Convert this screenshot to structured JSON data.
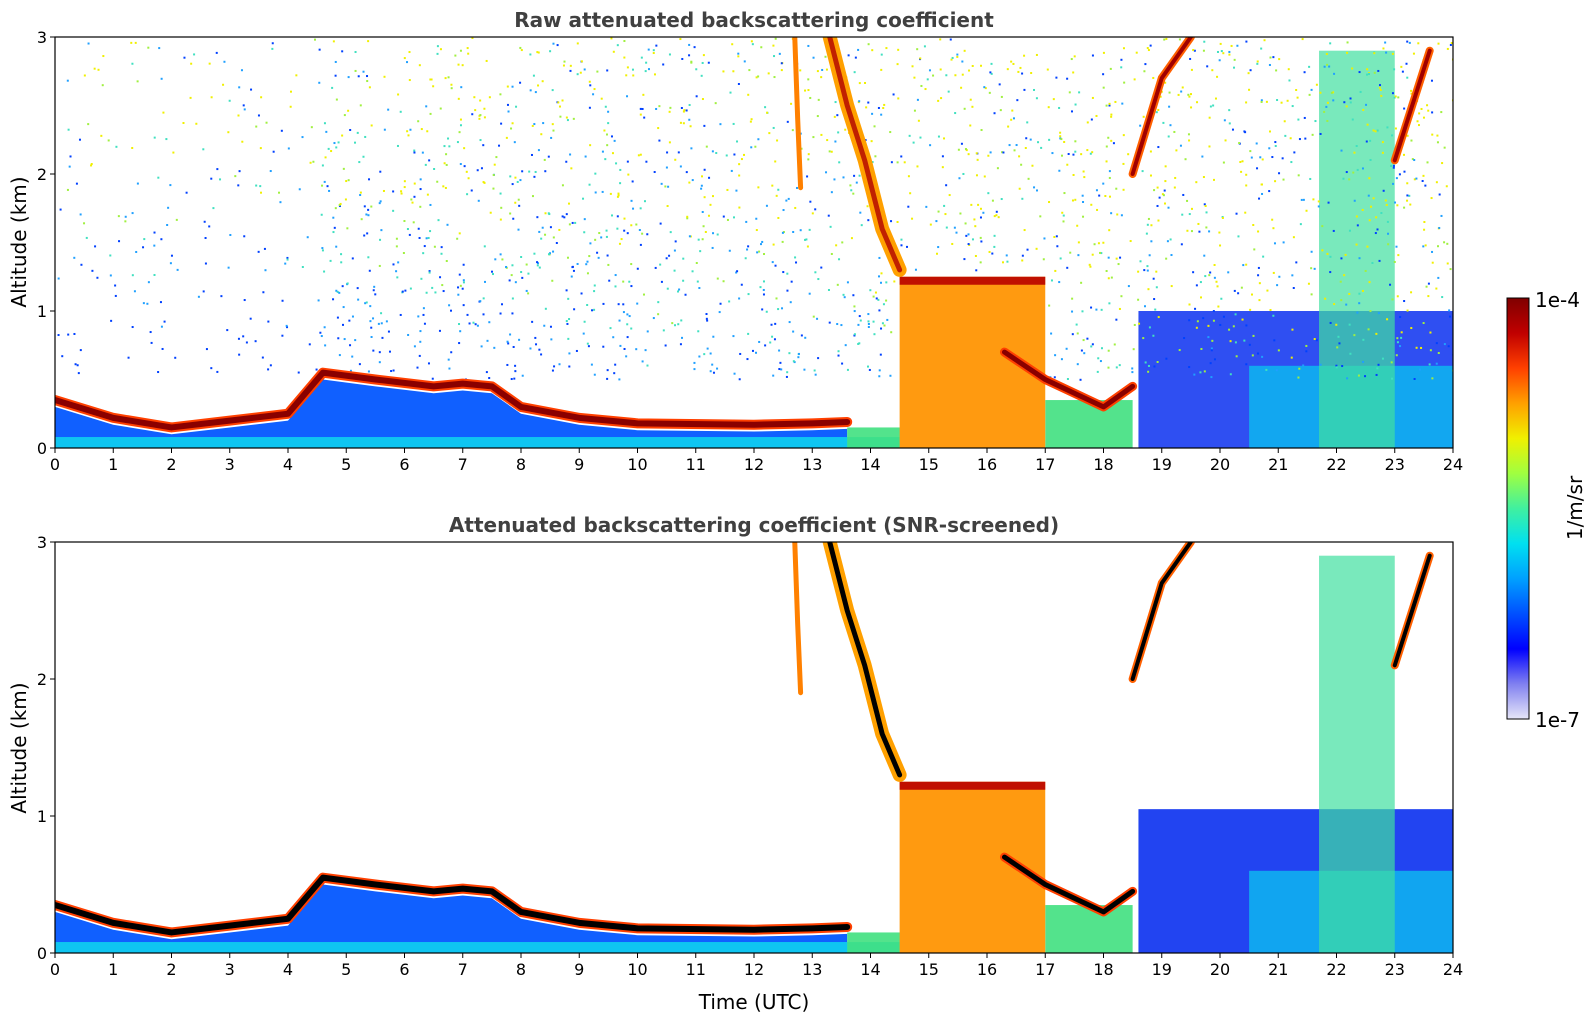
{
  "chart_data": [
    {
      "type": "heatmap",
      "title": "Raw attenuated backscattering coefficient",
      "xlabel": "",
      "ylabel": "Altitude (km)",
      "xlim": [
        0,
        24
      ],
      "ylim": [
        0,
        3
      ],
      "xticks": [
        "0",
        "1",
        "2",
        "3",
        "4",
        "5",
        "6",
        "7",
        "8",
        "9",
        "10",
        "11",
        "12",
        "13",
        "14",
        "15",
        "16",
        "17",
        "18",
        "19",
        "20",
        "21",
        "22",
        "23",
        "24"
      ],
      "yticks": [
        "0",
        "1",
        "2",
        "3"
      ],
      "features": [
        {
          "name": "boundary-layer-top",
          "kind": "line",
          "x": [
            0,
            1,
            2,
            3,
            4,
            4.6,
            5.5,
            6.5,
            7,
            7.5,
            8,
            9,
            10,
            12,
            13,
            13.6
          ],
          "y": [
            0.35,
            0.22,
            0.15,
            0.2,
            0.25,
            0.55,
            0.5,
            0.45,
            0.47,
            0.45,
            0.3,
            0.22,
            0.18,
            0.17,
            0.18,
            0.19
          ]
        },
        {
          "name": "cloud-descending",
          "kind": "line",
          "x": [
            13.3,
            13.6,
            13.9,
            14.2,
            14.5
          ],
          "y": [
            3.0,
            2.5,
            2.1,
            1.6,
            1.3
          ]
        },
        {
          "name": "thick-cloud-block",
          "kind": "block",
          "x": [
            14.5,
            17.0
          ],
          "y": [
            0.0,
            1.2
          ]
        },
        {
          "name": "cloud-base-descending",
          "kind": "line",
          "x": [
            16.3,
            17,
            17.5,
            18,
            18.5
          ],
          "y": [
            0.7,
            0.5,
            0.4,
            0.3,
            0.45
          ]
        },
        {
          "name": "high-cloud-streaks",
          "kind": "line",
          "x": [
            18.5,
            19,
            19.5
          ],
          "y": [
            2.0,
            2.7,
            3.0
          ]
        },
        {
          "name": "high-cloud-right",
          "kind": "line",
          "x": [
            23.0,
            23.3,
            23.6
          ],
          "y": [
            2.1,
            2.5,
            2.9
          ]
        }
      ]
    },
    {
      "type": "heatmap",
      "title": "Attenuated backscattering coefficient (SNR-screened)",
      "xlabel": "Time (UTC)",
      "ylabel": "Altitude (km)",
      "xlim": [
        0,
        24
      ],
      "ylim": [
        0,
        3
      ],
      "xticks": [
        "0",
        "1",
        "2",
        "3",
        "4",
        "5",
        "6",
        "7",
        "8",
        "9",
        "10",
        "11",
        "12",
        "13",
        "14",
        "15",
        "16",
        "17",
        "18",
        "19",
        "20",
        "21",
        "22",
        "23",
        "24"
      ],
      "yticks": [
        "0",
        "1",
        "2",
        "3"
      ]
    }
  ],
  "colorbar": {
    "label": "1/m/sr",
    "max_label": "1e-4",
    "min_label": "1e-7",
    "min": 1e-07,
    "max": 0.0001,
    "scale": "log",
    "colors": [
      "#e6e6f8",
      "#8080f0",
      "#0000ff",
      "#0050ff",
      "#00a0ff",
      "#00e0f0",
      "#40f0a0",
      "#a0ff40",
      "#f0f000",
      "#ffa000",
      "#ff4000",
      "#c00000",
      "#800000"
    ]
  }
}
